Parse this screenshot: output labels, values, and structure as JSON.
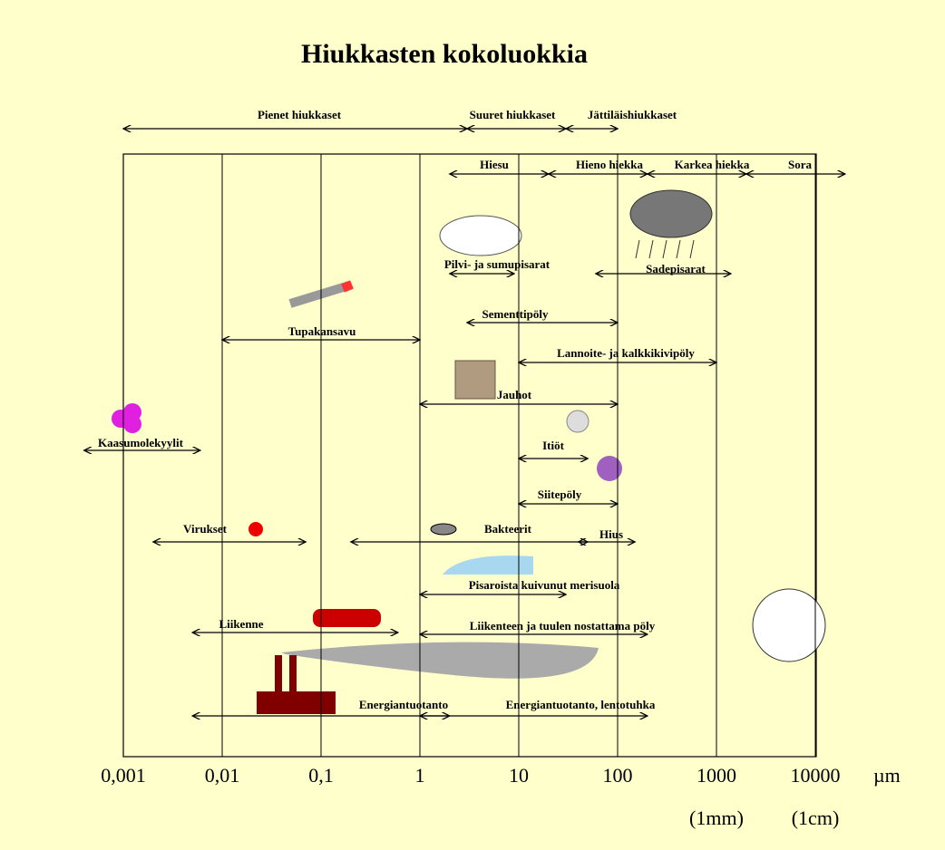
{
  "chart_data": {
    "type": "range",
    "title": "Hiukkasten kokoluokkia",
    "xscale": "log",
    "xlim": [
      0.001,
      10000
    ],
    "xticks": [
      {
        "value": 0.001,
        "label": "0,001"
      },
      {
        "value": 0.01,
        "label": "0,01"
      },
      {
        "value": 0.1,
        "label": "0,1"
      },
      1,
      10,
      100,
      1000,
      10000
    ],
    "xunit": "µm",
    "xsublabels": [
      {
        "value": 1000,
        "label": "(1mm)"
      },
      {
        "value": 10000,
        "label": "(1cm)"
      }
    ],
    "color": "#000000",
    "background": "#ffffcc",
    "items": [
      {
        "label": "Pienet hiukkaset",
        "range": [
          0.001,
          3
        ]
      },
      {
        "label": "Suuret hiukkaset",
        "range": [
          3,
          30
        ]
      },
      {
        "label": "Jättiläishiukkaset",
        "range": [
          30,
          100
        ]
      },
      {
        "label": "Hiesu",
        "range": [
          2,
          20
        ]
      },
      {
        "label": "Hieno hiekka",
        "range": [
          20,
          200
        ]
      },
      {
        "label": "Karkea hiekka",
        "range": [
          200,
          2000
        ]
      },
      {
        "label": "Sora",
        "range": [
          2000,
          20000
        ]
      },
      {
        "label": "Pilvi- ja sumupisarat",
        "range": [
          2,
          9
        ]
      },
      {
        "label": "Sadepisarat",
        "range": [
          60,
          1400
        ]
      },
      {
        "label": "Sementtipöly",
        "range": [
          3,
          100
        ]
      },
      {
        "label": "Tupakansavu",
        "range": [
          0.01,
          1
        ]
      },
      {
        "label": "Lannoite- ja kalkkikivipöly",
        "range": [
          10,
          1000
        ]
      },
      {
        "label": "Jauhot",
        "range": [
          1,
          100
        ]
      },
      {
        "label": "Kaasumolekyylit",
        "range": [
          0.0004,
          0.006
        ]
      },
      {
        "label": "Itiöt",
        "range": [
          10,
          50
        ]
      },
      {
        "label": "Siitepöly",
        "range": [
          10,
          100
        ]
      },
      {
        "label": "Virukset",
        "range": [
          0.002,
          0.07
        ]
      },
      {
        "label": "Bakteerit",
        "range": [
          0.2,
          50
        ]
      },
      {
        "label": "Hius",
        "range": [
          40,
          150
        ]
      },
      {
        "label": "Pisaroista kuivunut merisuola",
        "range": [
          1,
          30
        ]
      },
      {
        "label": "Liikenne",
        "range": [
          0.005,
          0.6
        ]
      },
      {
        "label": "Liikenteen ja tuulen nostattama pöly",
        "range": [
          1,
          200
        ]
      },
      {
        "label": "Energiantuotanto",
        "range": [
          0.005,
          2
        ]
      },
      {
        "label": "Energiantuotanto, lentotuhka",
        "range": [
          1,
          200
        ]
      }
    ]
  }
}
